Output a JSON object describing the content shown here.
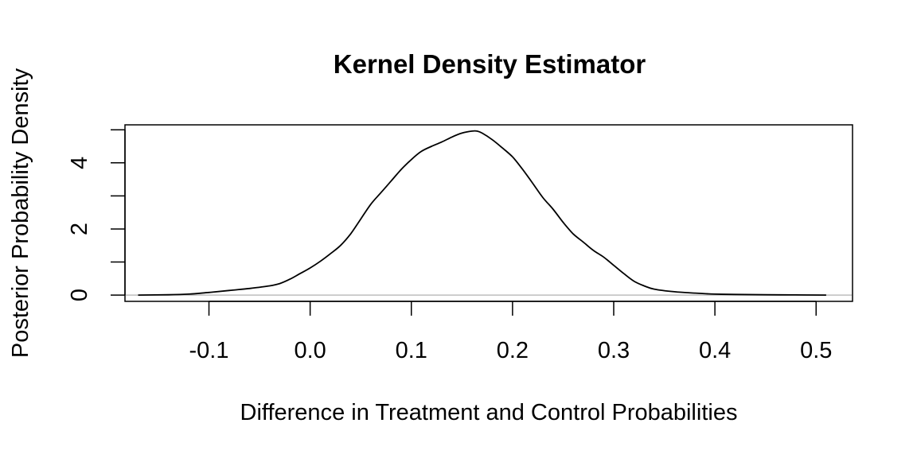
{
  "chart_data": {
    "type": "line",
    "title": "Kernel Density Estimator",
    "xlabel": "Difference in Treatment and Control Probabilities",
    "ylabel": "Posterior Probability Density",
    "xlim": [
      -0.183,
      0.536
    ],
    "ylim": [
      -0.19,
      5.15
    ],
    "xticks": [
      -0.1,
      0.0,
      0.1,
      0.2,
      0.3,
      0.4,
      0.5
    ],
    "xtick_labels": [
      "-0.1",
      "0.0",
      "0.1",
      "0.2",
      "0.3",
      "0.4",
      "0.5"
    ],
    "yticks": [
      0,
      1,
      2,
      3,
      4,
      5
    ],
    "ytick_labels": [
      "0",
      "",
      "2",
      "",
      "4",
      ""
    ],
    "baseline": 0,
    "grid": false,
    "colors": {
      "line": "#000000",
      "baseline": "#bebebe"
    },
    "series": [
      {
        "x": [
          -0.17,
          -0.14,
          -0.12,
          -0.1,
          -0.08,
          -0.06,
          -0.04,
          -0.03,
          -0.02,
          -0.01,
          0.0,
          0.01,
          0.02,
          0.03,
          0.04,
          0.05,
          0.06,
          0.07,
          0.08,
          0.09,
          0.1,
          0.11,
          0.12,
          0.13,
          0.14,
          0.15,
          0.16,
          0.165,
          0.17,
          0.18,
          0.19,
          0.2,
          0.21,
          0.22,
          0.23,
          0.24,
          0.25,
          0.26,
          0.27,
          0.28,
          0.29,
          0.3,
          0.31,
          0.32,
          0.33,
          0.34,
          0.36,
          0.38,
          0.4,
          0.42,
          0.45,
          0.48,
          0.51
        ],
        "y": [
          0.0,
          0.01,
          0.03,
          0.08,
          0.14,
          0.2,
          0.28,
          0.35,
          0.48,
          0.65,
          0.82,
          1.02,
          1.25,
          1.5,
          1.85,
          2.3,
          2.75,
          3.1,
          3.45,
          3.8,
          4.1,
          4.35,
          4.5,
          4.63,
          4.78,
          4.9,
          4.96,
          4.96,
          4.9,
          4.7,
          4.45,
          4.18,
          3.8,
          3.38,
          2.95,
          2.6,
          2.2,
          1.85,
          1.6,
          1.35,
          1.15,
          0.9,
          0.65,
          0.42,
          0.28,
          0.18,
          0.1,
          0.06,
          0.03,
          0.02,
          0.01,
          0.005,
          0.0
        ]
      }
    ]
  }
}
